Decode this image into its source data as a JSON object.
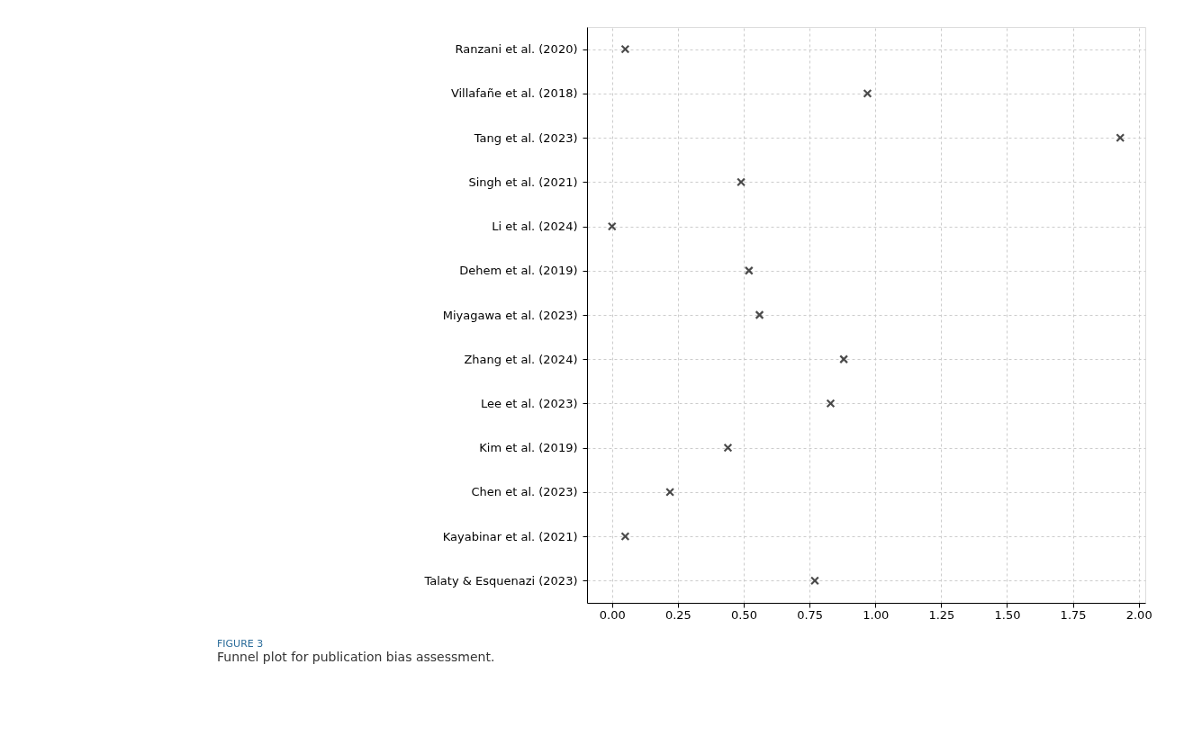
{
  "chart_data": {
    "type": "scatter",
    "orientation": "horizontal",
    "categories": [
      "Ranzani et al. (2020)",
      "Villafañe et al. (2018)",
      "Tang et al. (2023)",
      "Singh et al. (2021)",
      "Li et al. (2024)",
      "Dehem et al. (2019)",
      "Miyagawa et al. (2023)",
      "Zhang et al. (2024)",
      "Lee et al. (2023)",
      "Kim et al. (2019)",
      "Chen et al. (2023)",
      "Kayabinar et al. (2021)",
      "Talaty & Esquenazi (2023)"
    ],
    "values": [
      0.05,
      0.97,
      1.93,
      0.49,
      0.0,
      0.52,
      0.56,
      0.88,
      0.83,
      0.44,
      0.22,
      0.05,
      0.77
    ],
    "color": "#000000",
    "marker": "cross",
    "xlim": [
      -0.095,
      2.025
    ],
    "xticks": [
      {
        "value": 0,
        "label": "0.00"
      },
      {
        "value": 0.25,
        "label": "0.25"
      },
      {
        "value": 0.5,
        "label": "0.50"
      },
      {
        "value": 0.75,
        "label": "0.75"
      },
      {
        "value": 1,
        "label": "1.00"
      },
      {
        "value": 1.25,
        "label": "1.25"
      },
      {
        "value": 1.5,
        "label": "1.50"
      },
      {
        "value": 1.75,
        "label": "1.75"
      },
      {
        "value": 2,
        "label": "2.00"
      }
    ],
    "grid": true,
    "annotations": [
      "FIGURE 3",
      "Funnel plot for publication bias assessment."
    ]
  }
}
